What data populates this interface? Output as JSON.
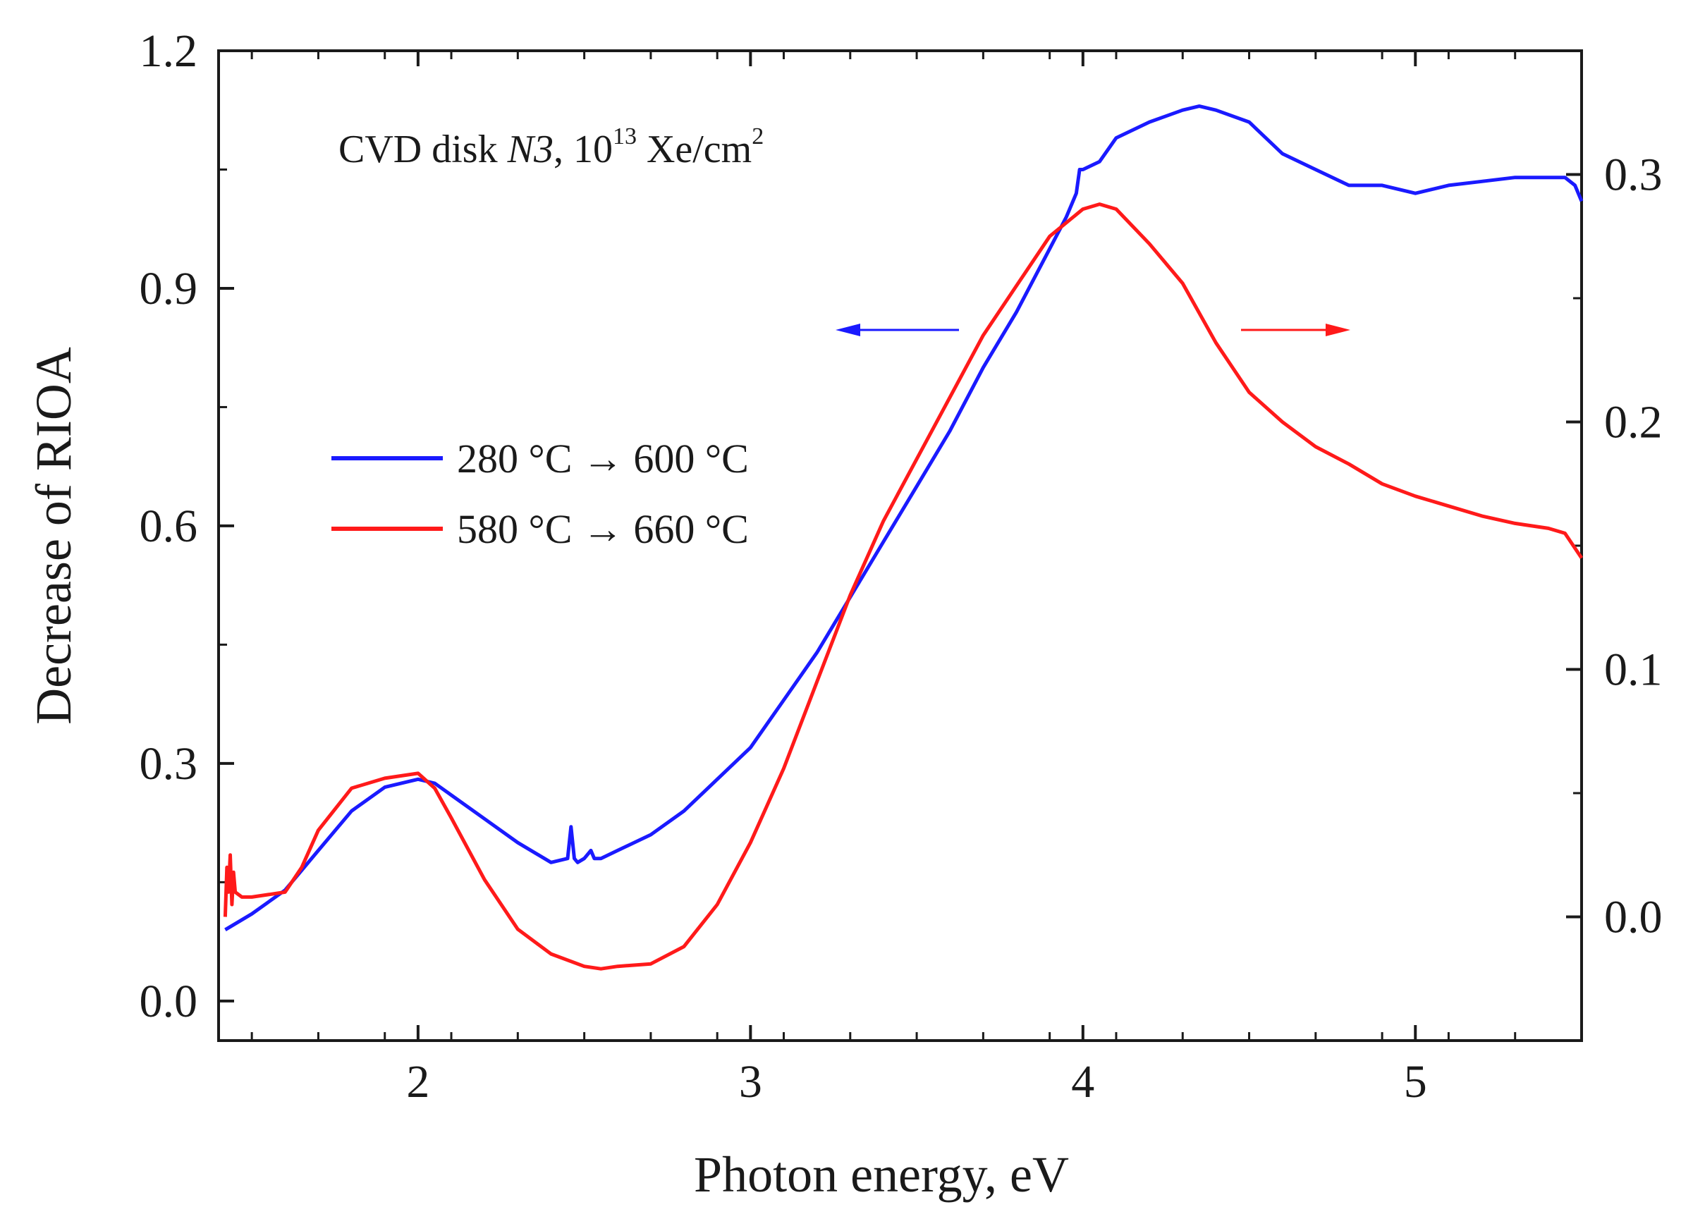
{
  "chart_data": {
    "type": "line",
    "annotation": {
      "prefix": "CVD disk ",
      "italic": "N3",
      "mid": ", 10",
      "sup1": "13",
      "unit": " Xe/cm",
      "sup2": "2"
    },
    "xlabel": "Photon energy, eV",
    "ylabel": "Decrease  of  RIOA",
    "xlim": [
      1.4,
      5.5
    ],
    "ylim_left": [
      -0.05,
      1.2
    ],
    "ylim_right": [
      -0.05,
      0.35
    ],
    "x_ticks": [
      "2",
      "3",
      "4",
      "5"
    ],
    "y_left_ticks": [
      "0.0",
      "0.3",
      "0.6",
      "0.9",
      "1.2"
    ],
    "y_right_ticks": [
      "0.0",
      "0.1",
      "0.2",
      "0.3"
    ],
    "colors": {
      "blue": "#1a1aff",
      "red": "#ff1a1a",
      "axis": "#1a1a1a"
    },
    "legend": [
      {
        "label": "280 °C → 600 °C",
        "color": "#1a1aff"
      },
      {
        "label": "580 °C → 660 °C",
        "color": "#ff1a1a"
      }
    ],
    "series": [
      {
        "name": "280 °C → 600 °C",
        "axis": "left",
        "color": "#1a1aff",
        "x": [
          1.42,
          1.5,
          1.6,
          1.7,
          1.8,
          1.9,
          2.0,
          2.05,
          2.1,
          2.2,
          2.3,
          2.4,
          2.45,
          2.46,
          2.47,
          2.48,
          2.5,
          2.52,
          2.53,
          2.55,
          2.6,
          2.7,
          2.8,
          2.9,
          3.0,
          3.1,
          3.2,
          3.3,
          3.4,
          3.5,
          3.6,
          3.7,
          3.8,
          3.9,
          3.95,
          3.98,
          3.99,
          4.0,
          4.05,
          4.1,
          4.2,
          4.3,
          4.35,
          4.4,
          4.5,
          4.6,
          4.7,
          4.8,
          4.9,
          5.0,
          5.1,
          5.2,
          5.3,
          5.4,
          5.45,
          5.48,
          5.5
        ],
        "y": [
          0.09,
          0.11,
          0.14,
          0.19,
          0.24,
          0.27,
          0.28,
          0.275,
          0.26,
          0.23,
          0.2,
          0.175,
          0.18,
          0.22,
          0.18,
          0.175,
          0.18,
          0.19,
          0.18,
          0.18,
          0.19,
          0.21,
          0.24,
          0.28,
          0.32,
          0.38,
          0.44,
          0.51,
          0.58,
          0.65,
          0.72,
          0.8,
          0.87,
          0.95,
          0.99,
          1.02,
          1.05,
          1.05,
          1.06,
          1.09,
          1.11,
          1.125,
          1.13,
          1.125,
          1.11,
          1.07,
          1.05,
          1.03,
          1.03,
          1.02,
          1.03,
          1.035,
          1.04,
          1.04,
          1.04,
          1.03,
          1.01
        ]
      },
      {
        "name": "580 °C → 660 °C",
        "axis": "right",
        "color": "#ff1a1a",
        "x": [
          1.42,
          1.425,
          1.43,
          1.435,
          1.44,
          1.445,
          1.45,
          1.47,
          1.5,
          1.6,
          1.65,
          1.7,
          1.8,
          1.9,
          2.0,
          2.05,
          2.1,
          2.2,
          2.3,
          2.4,
          2.5,
          2.55,
          2.6,
          2.7,
          2.8,
          2.9,
          3.0,
          3.1,
          3.2,
          3.3,
          3.4,
          3.5,
          3.6,
          3.7,
          3.8,
          3.9,
          4.0,
          4.05,
          4.1,
          4.2,
          4.3,
          4.4,
          4.5,
          4.6,
          4.7,
          4.8,
          4.9,
          5.0,
          5.1,
          5.2,
          5.3,
          5.4,
          5.45,
          5.5
        ],
        "y": [
          0.0,
          0.02,
          0.01,
          0.025,
          0.005,
          0.018,
          0.01,
          0.008,
          0.008,
          0.01,
          0.02,
          0.035,
          0.052,
          0.056,
          0.058,
          0.052,
          0.04,
          0.015,
          -0.005,
          -0.015,
          -0.02,
          -0.021,
          -0.02,
          -0.019,
          -0.012,
          0.005,
          0.03,
          0.06,
          0.095,
          0.13,
          0.16,
          0.185,
          0.21,
          0.235,
          0.255,
          0.275,
          0.286,
          0.288,
          0.286,
          0.272,
          0.256,
          0.232,
          0.212,
          0.2,
          0.19,
          0.183,
          0.175,
          0.17,
          0.166,
          0.162,
          0.159,
          0.157,
          0.155,
          0.145
        ]
      }
    ]
  }
}
